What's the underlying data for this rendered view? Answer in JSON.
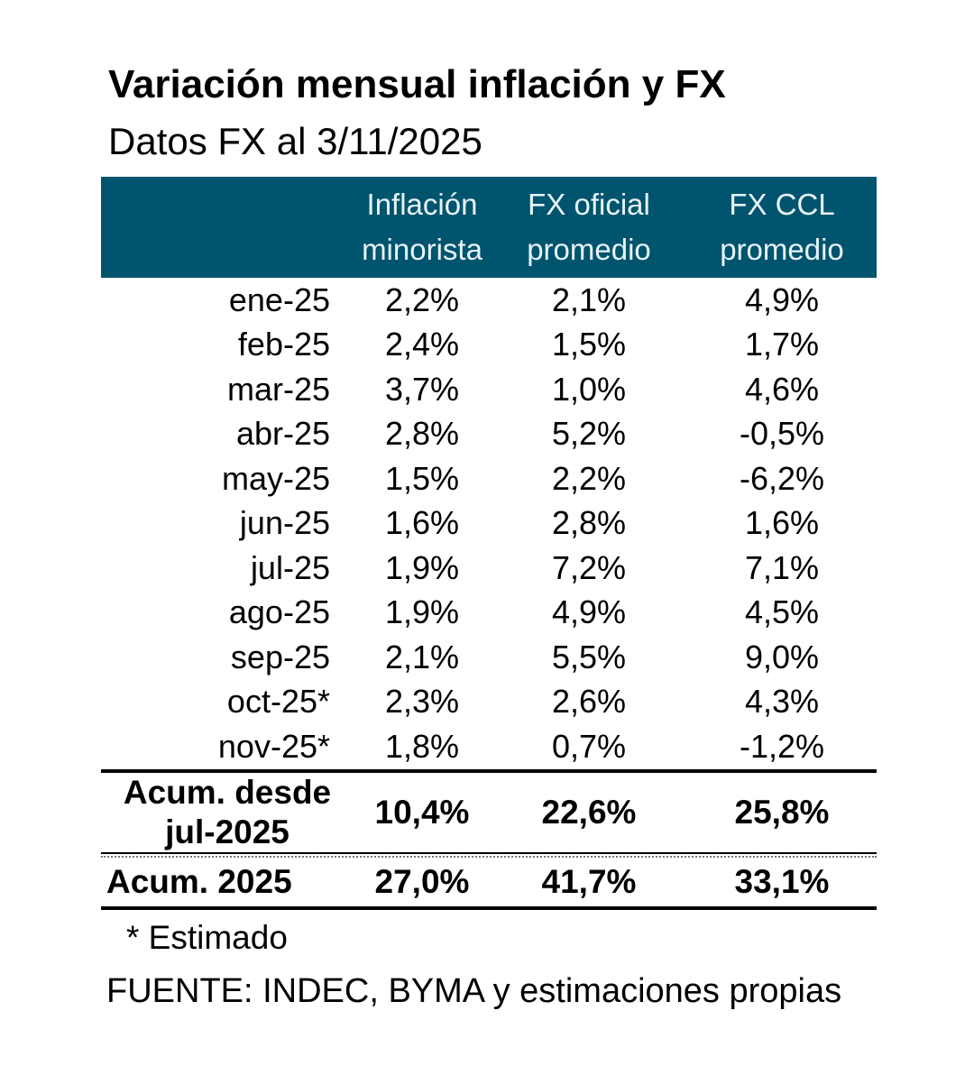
{
  "chart_data": {
    "type": "table",
    "title": "Variación mensual inflación y FX",
    "subtitle": "Datos FX al 3/11/2025",
    "columns": [
      "",
      "Inflación minorista",
      "FX oficial promedio",
      "FX CCL promedio"
    ],
    "column_headers_display": [
      "",
      "Inflación\nminorista",
      "FX oficial\npromedio",
      "FX CCL\npromedio"
    ],
    "rows": [
      [
        "ene-25",
        "2,2%",
        "2,1%",
        "4,9%"
      ],
      [
        "feb-25",
        "2,4%",
        "1,5%",
        "1,7%"
      ],
      [
        "mar-25",
        "3,7%",
        "1,0%",
        "4,6%"
      ],
      [
        "abr-25",
        "2,8%",
        "5,2%",
        "-0,5%"
      ],
      [
        "may-25",
        "1,5%",
        "2,2%",
        "-6,2%"
      ],
      [
        "jun-25",
        "1,6%",
        "2,8%",
        "1,6%"
      ],
      [
        "jul-25",
        "1,9%",
        "7,2%",
        "7,1%"
      ],
      [
        "ago-25",
        "1,9%",
        "4,9%",
        "4,5%"
      ],
      [
        "sep-25",
        "2,1%",
        "5,5%",
        "9,0%"
      ],
      [
        "oct-25*",
        "2,3%",
        "2,6%",
        "4,3%"
      ],
      [
        "nov-25*",
        "1,8%",
        "0,7%",
        "-1,2%"
      ]
    ],
    "summary_rows": [
      {
        "label": "Acum. desde\njul-2025",
        "values": [
          "10,4%",
          "22,6%",
          "25,8%"
        ]
      },
      {
        "label": "Acum. 2025",
        "values": [
          "27,0%",
          "41,7%",
          "33,1%"
        ]
      }
    ],
    "footnote": "* Estimado",
    "source": "FUENTE: INDEC, BYMA y estimaciones propias",
    "layout": {
      "header_bg": "#00546E",
      "header_text_color": "#E7F3F8",
      "grid": false,
      "legend": "none"
    }
  }
}
